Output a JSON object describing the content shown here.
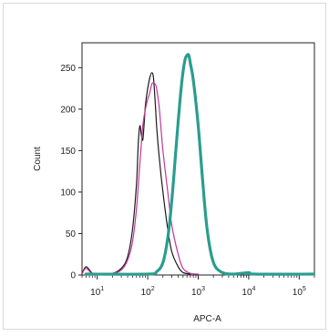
{
  "chart_data": {
    "type": "line",
    "title": "",
    "xlabel": "APC-A",
    "ylabel": "Count",
    "xscale": "log",
    "xlim": [
      5,
      200000
    ],
    "ylim": [
      0,
      280
    ],
    "x_ticks": [
      {
        "value": 10,
        "base": "10",
        "exp": "1"
      },
      {
        "value": 100,
        "base": "10",
        "exp": "2"
      },
      {
        "value": 1000,
        "base": "10",
        "exp": "3"
      },
      {
        "value": 10000,
        "base": "10",
        "exp": "4"
      },
      {
        "value": 100000,
        "base": "10",
        "exp": "5"
      }
    ],
    "y_ticks": [
      0,
      50,
      100,
      150,
      200,
      250
    ],
    "grid": false,
    "legend": "none",
    "series": [
      {
        "color": "#1a1a1a",
        "line_width": 1.2,
        "points": [
          [
            5,
            0
          ],
          [
            6,
            10
          ],
          [
            8,
            2
          ],
          [
            10,
            0
          ],
          [
            20,
            2
          ],
          [
            30,
            8
          ],
          [
            40,
            22
          ],
          [
            50,
            55
          ],
          [
            60,
            110
          ],
          [
            65,
            158
          ],
          [
            70,
            180
          ],
          [
            75,
            168
          ],
          [
            80,
            163
          ],
          [
            85,
            183
          ],
          [
            90,
            205
          ],
          [
            100,
            225
          ],
          [
            110,
            238
          ],
          [
            120,
            244
          ],
          [
            130,
            238
          ],
          [
            140,
            210
          ],
          [
            150,
            180
          ],
          [
            170,
            140
          ],
          [
            200,
            100
          ],
          [
            250,
            55
          ],
          [
            300,
            28
          ],
          [
            400,
            10
          ],
          [
            500,
            3
          ],
          [
            700,
            0
          ]
        ]
      },
      {
        "color": "#c2379a",
        "line_width": 1.2,
        "points": [
          [
            5,
            0
          ],
          [
            6,
            8
          ],
          [
            8,
            1
          ],
          [
            10,
            0
          ],
          [
            20,
            2
          ],
          [
            30,
            6
          ],
          [
            40,
            18
          ],
          [
            50,
            40
          ],
          [
            60,
            80
          ],
          [
            70,
            135
          ],
          [
            80,
            180
          ],
          [
            90,
            200
          ],
          [
            100,
            212
          ],
          [
            110,
            220
          ],
          [
            120,
            230
          ],
          [
            130,
            232
          ],
          [
            140,
            230
          ],
          [
            150,
            225
          ],
          [
            170,
            200
          ],
          [
            200,
            150
          ],
          [
            250,
            100
          ],
          [
            300,
            60
          ],
          [
            400,
            25
          ],
          [
            500,
            8
          ],
          [
            700,
            2
          ],
          [
            1000,
            0
          ]
        ]
      },
      {
        "color": "#2a9d8f",
        "line_width": 3.2,
        "points": [
          [
            6,
            0
          ],
          [
            100,
            0
          ],
          [
            150,
            4
          ],
          [
            200,
            15
          ],
          [
            250,
            45
          ],
          [
            300,
            90
          ],
          [
            350,
            140
          ],
          [
            400,
            185
          ],
          [
            450,
            220
          ],
          [
            500,
            245
          ],
          [
            550,
            260
          ],
          [
            600,
            265
          ],
          [
            650,
            265
          ],
          [
            700,
            255
          ],
          [
            800,
            235
          ],
          [
            1000,
            180
          ],
          [
            1200,
            120
          ],
          [
            1500,
            55
          ],
          [
            2000,
            15
          ],
          [
            3000,
            3
          ],
          [
            5000,
            1
          ],
          [
            10000,
            3
          ],
          [
            13000,
            0
          ],
          [
            200000,
            0
          ]
        ]
      }
    ]
  }
}
